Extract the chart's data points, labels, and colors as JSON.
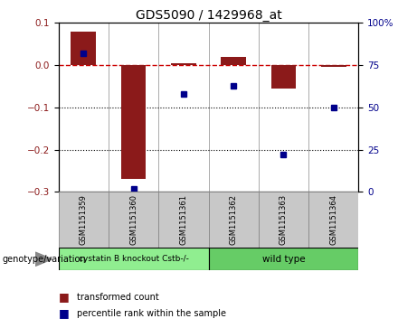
{
  "title": "GDS5090 / 1429968_at",
  "samples": [
    "GSM1151359",
    "GSM1151360",
    "GSM1151361",
    "GSM1151362",
    "GSM1151363",
    "GSM1151364"
  ],
  "red_values": [
    0.08,
    -0.27,
    0.005,
    0.02,
    -0.055,
    -0.005
  ],
  "blue_values_pct": [
    82,
    2,
    58,
    63,
    22,
    50
  ],
  "ylim_left": [
    -0.3,
    0.1
  ],
  "ylim_right": [
    0,
    100
  ],
  "groups": [
    {
      "label": "cystatin B knockout Cstb-/-",
      "samples": [
        0,
        1,
        2
      ],
      "color": "#90EE90"
    },
    {
      "label": "wild type",
      "samples": [
        3,
        4,
        5
      ],
      "color": "#66CC66"
    }
  ],
  "group_label": "genotype/variation",
  "red_legend": "transformed count",
  "blue_legend": "percentile rank within the sample",
  "bar_color": "#8B1A1A",
  "dot_color": "#00008B",
  "dashed_line_color": "#CC0000",
  "background_color": "#FFFFFF",
  "plot_bg_color": "#FFFFFF",
  "tick_label_area_color": "#C8C8C8"
}
